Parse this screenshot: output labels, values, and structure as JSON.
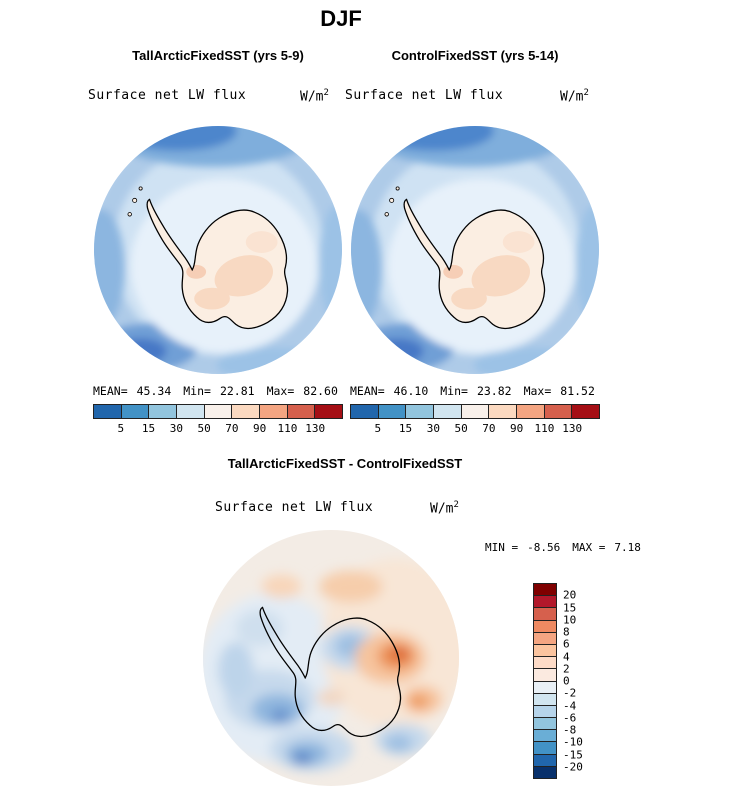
{
  "title": "DJF",
  "panels": [
    {
      "title": "TallArcticFixedSST (yrs 5-9)",
      "field_label": "Surface net LW flux",
      "units_base": "W/m",
      "units_exp": "2",
      "stats": {
        "mean_label": "MEAN=",
        "mean": "45.34",
        "min_label": "Min=",
        "min": "22.81",
        "max_label": "Max=",
        "max": "82.60"
      }
    },
    {
      "title": "ControlFixedSST (yrs 5-14)",
      "field_label": "Surface net LW flux",
      "units_base": "W/m",
      "units_exp": "2",
      "stats": {
        "mean_label": "MEAN=",
        "mean": "46.10",
        "min_label": "Min=",
        "min": "23.82",
        "max_label": "Max=",
        "max": "81.52"
      }
    }
  ],
  "diff": {
    "title": "TallArcticFixedSST - ControlFixedSST",
    "field_label": "Surface net LW flux",
    "units_base": "W/m",
    "units_exp": "2",
    "stats": {
      "min_label": "MIN =",
      "min": "-8.56",
      "max_label": "MAX =",
      "max": "7.18"
    }
  },
  "colorbars": {
    "main": {
      "colors": [
        "#2166ac",
        "#4292c6",
        "#92c5de",
        "#d1e5f0",
        "#f8f0ea",
        "#fbd9c0",
        "#f4a582",
        "#d6604d",
        "#a50f15"
      ],
      "ticks": [
        "5",
        "15",
        "30",
        "50",
        "70",
        "90",
        "110",
        "130"
      ]
    },
    "diff": {
      "colors": [
        "#7f0000",
        "#b2182b",
        "#d6604d",
        "#ef8a62",
        "#f4a582",
        "#fbc49f",
        "#fddbc7",
        "#fbeae0",
        "#e9f0f6",
        "#d1e5f0",
        "#b6d4ea",
        "#92c5de",
        "#6aaed6",
        "#4292c6",
        "#2166ac",
        "#08306b"
      ],
      "ticks": [
        "20",
        "15",
        "10",
        "8",
        "6",
        "4",
        "2",
        "0",
        "-2",
        "-4",
        "-6",
        "-8",
        "-10",
        "-15",
        "-20"
      ]
    }
  },
  "chart_data": {
    "type": "heatmap",
    "title": "DJF",
    "variable": "Surface net LW flux",
    "units": "W/m^2",
    "projection": "south polar stereographic (Antarctica)",
    "panels": [
      {
        "name": "TallArcticFixedSST (yrs 5-9)",
        "mean": 45.34,
        "min": 22.81,
        "max": 82.6,
        "contour_levels": [
          5,
          15,
          30,
          50,
          70,
          90,
          110,
          130
        ],
        "legend_position": "below"
      },
      {
        "name": "ControlFixedSST (yrs 5-14)",
        "mean": 46.1,
        "min": 23.82,
        "max": 81.52,
        "contour_levels": [
          5,
          15,
          30,
          50,
          70,
          90,
          110,
          130
        ],
        "legend_position": "below"
      },
      {
        "name": "TallArcticFixedSST - ControlFixedSST",
        "min": -8.56,
        "max": 7.18,
        "contour_levels": [
          -20,
          -15,
          -10,
          -8,
          -6,
          -4,
          -2,
          0,
          2,
          4,
          6,
          8,
          10,
          15,
          20
        ],
        "legend_position": "right"
      }
    ]
  }
}
